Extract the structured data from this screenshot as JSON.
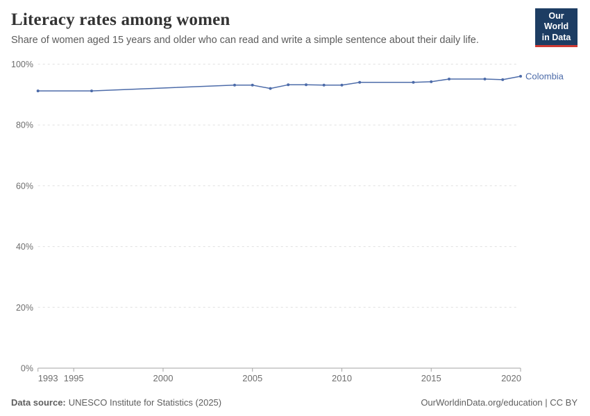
{
  "header": {
    "title": "Literacy rates among women",
    "subtitle": "Share of women aged 15 years and older who can read and write a simple sentence about their daily life."
  },
  "logo": {
    "line1": "Our World",
    "line2": "in Data",
    "bg_color": "#1d3d63",
    "accent_color": "#cf3a33",
    "text_color": "#ffffff"
  },
  "footer": {
    "source_label": "Data source:",
    "source_text": "UNESCO Institute for Statistics (2025)",
    "rights": "OurWorldinData.org/education | CC BY"
  },
  "chart_data": {
    "type": "line",
    "title": "Literacy rates among women",
    "xlabel": "",
    "ylabel": "",
    "xlim": [
      1993,
      2020
    ],
    "ylim": [
      0,
      100
    ],
    "x_ticks": [
      1993,
      1995,
      2000,
      2005,
      2010,
      2015,
      2020
    ],
    "y_ticks": [
      0,
      20,
      40,
      60,
      80,
      100
    ],
    "y_tick_suffix": "%",
    "grid": "horizontal-dashed",
    "legend_position": "end-of-line-label",
    "series": [
      {
        "name": "Colombia",
        "color": "#4c6ba9",
        "points": [
          {
            "x": 1993,
            "y": 91.2
          },
          {
            "x": 1996,
            "y": 91.2
          },
          {
            "x": 2004,
            "y": 93.1
          },
          {
            "x": 2005,
            "y": 93.1
          },
          {
            "x": 2006,
            "y": 92.0
          },
          {
            "x": 2007,
            "y": 93.2
          },
          {
            "x": 2008,
            "y": 93.2
          },
          {
            "x": 2009,
            "y": 93.1
          },
          {
            "x": 2010,
            "y": 93.1
          },
          {
            "x": 2011,
            "y": 94.0
          },
          {
            "x": 2014,
            "y": 94.0
          },
          {
            "x": 2015,
            "y": 94.2
          },
          {
            "x": 2016,
            "y": 95.1
          },
          {
            "x": 2018,
            "y": 95.1
          },
          {
            "x": 2019,
            "y": 94.9
          },
          {
            "x": 2020,
            "y": 96.0
          }
        ]
      }
    ]
  }
}
